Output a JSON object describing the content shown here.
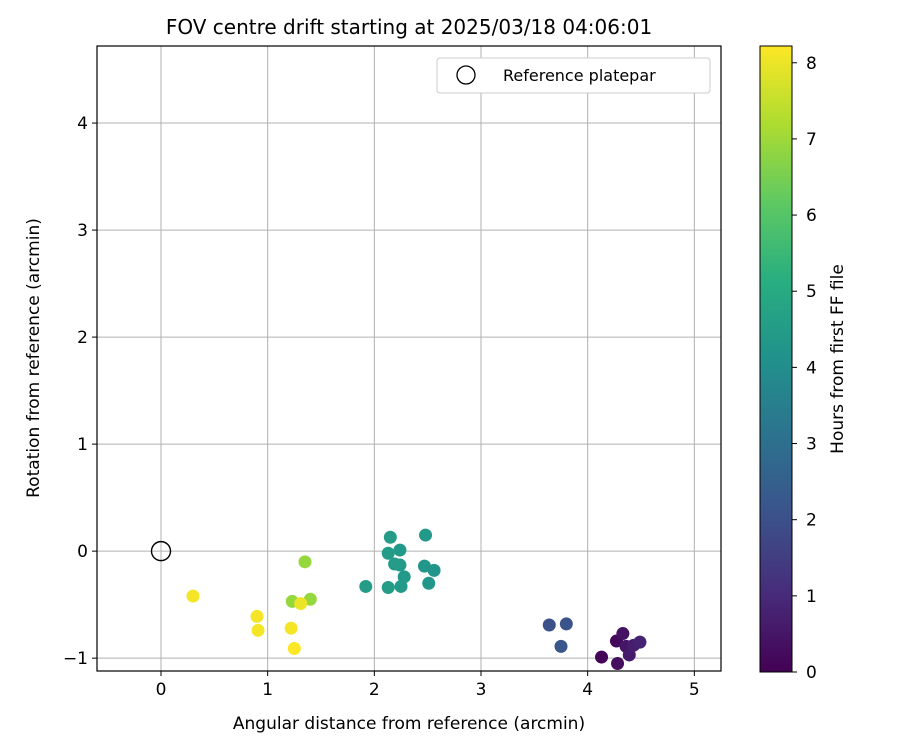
{
  "chart_data": {
    "type": "scatter",
    "title": "FOV centre drift starting at 2025/03/18 04:06:01",
    "xlabel": "Angular distance from reference (arcmin)",
    "ylabel": "Rotation from reference (arcmin)",
    "xlim": [
      -0.6,
      5.25
    ],
    "ylim": [
      -1.12,
      4.72
    ],
    "xticks": [
      "0",
      "1",
      "2",
      "3",
      "4",
      "5"
    ],
    "yticks": [
      "−1",
      "0",
      "1",
      "2",
      "3",
      "4"
    ],
    "grid": true,
    "legend": {
      "position": "top-right",
      "entries": [
        "Reference platepar"
      ]
    },
    "reference_point": {
      "x": 0,
      "y": 0
    },
    "colorbar": {
      "label": "Hours from first FF file",
      "range": [
        0,
        8.22
      ],
      "ticks": [
        "0",
        "1",
        "2",
        "3",
        "4",
        "5",
        "6",
        "7",
        "8"
      ],
      "colormap": "viridis"
    },
    "points": [
      {
        "x": 4.13,
        "y": -0.99,
        "hours": 0.1
      },
      {
        "x": 4.27,
        "y": -0.84,
        "hours": 0.2
      },
      {
        "x": 4.28,
        "y": -1.05,
        "hours": 0.3
      },
      {
        "x": 4.33,
        "y": -0.77,
        "hours": 0.4
      },
      {
        "x": 4.36,
        "y": -0.89,
        "hours": 0.5
      },
      {
        "x": 4.39,
        "y": -0.97,
        "hours": 0.6
      },
      {
        "x": 4.43,
        "y": -0.88,
        "hours": 0.7
      },
      {
        "x": 4.49,
        "y": -0.85,
        "hours": 0.8
      },
      {
        "x": 3.64,
        "y": -0.69,
        "hours": 2.0
      },
      {
        "x": 3.8,
        "y": -0.68,
        "hours": 2.1
      },
      {
        "x": 3.75,
        "y": -0.89,
        "hours": 2.2
      },
      {
        "x": 2.51,
        "y": -0.3,
        "hours": 4.3
      },
      {
        "x": 2.56,
        "y": -0.18,
        "hours": 4.3
      },
      {
        "x": 2.47,
        "y": -0.14,
        "hours": 4.3
      },
      {
        "x": 2.48,
        "y": 0.15,
        "hours": 4.4
      },
      {
        "x": 2.28,
        "y": -0.24,
        "hours": 4.4
      },
      {
        "x": 2.25,
        "y": -0.33,
        "hours": 4.4
      },
      {
        "x": 2.24,
        "y": -0.13,
        "hours": 4.4
      },
      {
        "x": 2.24,
        "y": 0.01,
        "hours": 4.4
      },
      {
        "x": 2.19,
        "y": -0.12,
        "hours": 4.5
      },
      {
        "x": 2.15,
        "y": 0.13,
        "hours": 4.5
      },
      {
        "x": 2.13,
        "y": -0.02,
        "hours": 4.5
      },
      {
        "x": 2.13,
        "y": -0.34,
        "hours": 4.5
      },
      {
        "x": 1.92,
        "y": -0.33,
        "hours": 4.5
      },
      {
        "x": 1.35,
        "y": -0.1,
        "hours": 6.9
      },
      {
        "x": 1.4,
        "y": -0.45,
        "hours": 6.9
      },
      {
        "x": 1.23,
        "y": -0.47,
        "hours": 6.9
      },
      {
        "x": 1.31,
        "y": -0.49,
        "hours": 8.0
      },
      {
        "x": 0.3,
        "y": -0.42,
        "hours": 8.1
      },
      {
        "x": 0.9,
        "y": -0.61,
        "hours": 8.1
      },
      {
        "x": 0.91,
        "y": -0.74,
        "hours": 8.1
      },
      {
        "x": 1.22,
        "y": -0.72,
        "hours": 8.1
      },
      {
        "x": 1.25,
        "y": -0.91,
        "hours": 8.2
      }
    ]
  }
}
